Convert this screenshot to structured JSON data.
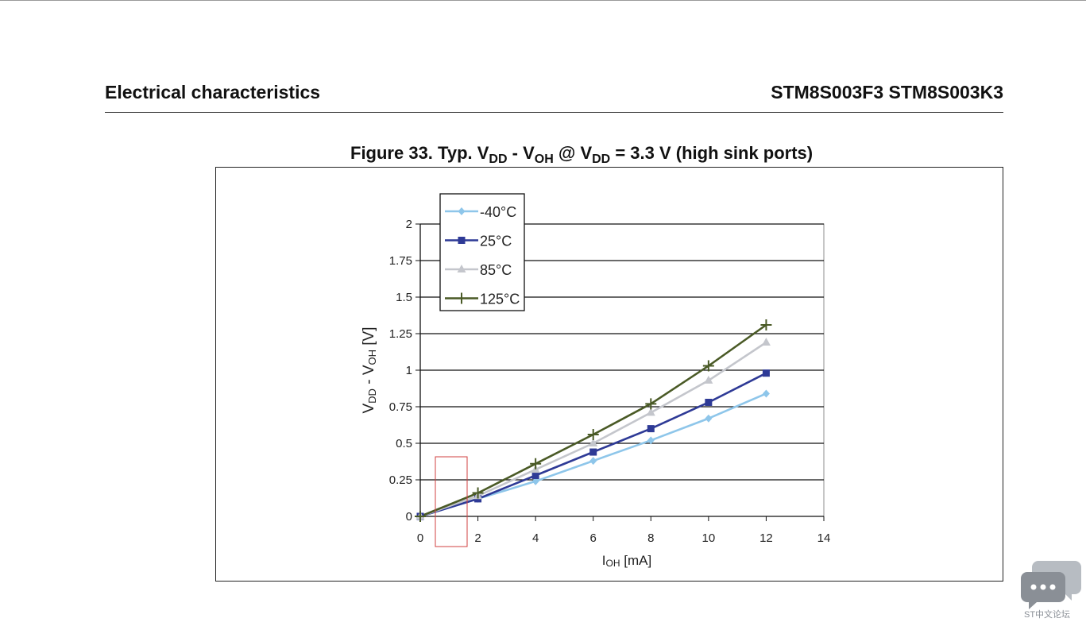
{
  "header": {
    "section": "Electrical characteristics",
    "part": "STM8S003F3 STM8S003K3"
  },
  "figure": {
    "title_prefix": "Figure 33. Typ. V",
    "title_sub1": "DD",
    "title_sep": " - V",
    "title_sub2": "OH",
    "title_mid": " @ V",
    "title_sub3": "DD",
    "title_suffix": " = 3.3 V (high sink ports)"
  },
  "chart_data": {
    "type": "line",
    "x": [
      0,
      2,
      4,
      6,
      8,
      10,
      12
    ],
    "xlim": [
      0,
      14
    ],
    "ylim": [
      0,
      2
    ],
    "x_ticks": [
      "0",
      "2",
      "4",
      "6",
      "8",
      "10",
      "12",
      "14"
    ],
    "y_ticks": [
      "0",
      "0.25",
      "0.5",
      "0.75",
      "1",
      "1.25",
      "1.5",
      "1.75",
      "2"
    ],
    "xlabel_main": "I",
    "xlabel_sub": "OH",
    "xlabel_unit": " [mA]",
    "ylabel_a": "V",
    "ylabel_a_sub": "DD",
    "ylabel_b": " - V",
    "ylabel_b_sub": "OH",
    "ylabel_unit": " [V]",
    "grid": "horizontal",
    "legend_position": "top-left",
    "series": [
      {
        "name": "-40°C",
        "color": "#8ec6ea",
        "marker": "diamond",
        "values": [
          0,
          0.12,
          0.24,
          0.38,
          0.52,
          0.67,
          0.84
        ]
      },
      {
        "name": "25°C",
        "color": "#2e3a96",
        "marker": "square",
        "values": [
          0,
          0.12,
          0.28,
          0.44,
          0.6,
          0.78,
          0.98
        ]
      },
      {
        "name": "85°C",
        "color": "#c4c6cc",
        "marker": "triangle",
        "values": [
          0,
          0.14,
          0.32,
          0.5,
          0.71,
          0.93,
          1.19
        ]
      },
      {
        "name": "125°C",
        "color": "#4a5a26",
        "marker": "plus",
        "values": [
          0,
          0.16,
          0.36,
          0.56,
          0.77,
          1.03,
          1.31
        ]
      }
    ]
  },
  "forum_badge": {
    "label": "ST中文论坛",
    "color": "#8a8f96",
    "icon": "chat-bubbles-icon"
  }
}
